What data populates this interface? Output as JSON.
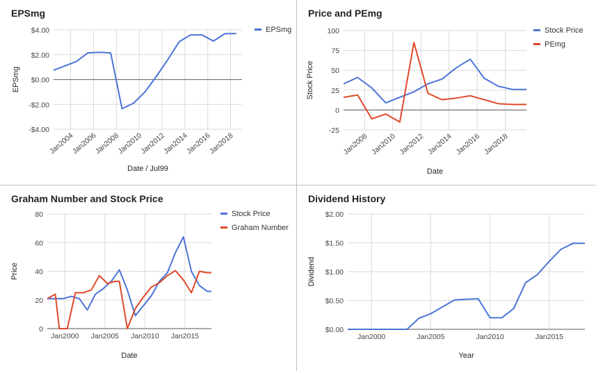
{
  "colors": {
    "blue": "#4a74d6",
    "red": "#e0482a",
    "grid": "#d9d9d9",
    "zero": "#777777"
  },
  "chart_data": [
    {
      "id": "eps",
      "type": "line",
      "title": "EPSmg",
      "xlabel": "Date / Jul99",
      "ylabel": "EPSmg",
      "ylim": [
        -4,
        4
      ],
      "yticks": [
        4,
        2,
        0,
        -2,
        -4
      ],
      "ytick_labels": [
        "$4.00",
        "$2.00",
        "$0.00",
        "-$2.00",
        "-$4.00"
      ],
      "xlim": [
        2002.5,
        2019.0
      ],
      "xticks": [
        2004,
        2006,
        2008,
        2010,
        2012,
        2014,
        2016,
        2018
      ],
      "xtick_labels": [
        "Jan2004",
        "Jan2006",
        "Jan2008",
        "Jan2010",
        "Jan2012",
        "Jan2014",
        "Jan2016",
        "Jan2018"
      ],
      "xtick_rotate": true,
      "zero_line": true,
      "legend": "right",
      "series": [
        {
          "name": "EPSmg",
          "color": "blue",
          "x": [
            2002.5,
            2003.5,
            2004.5,
            2005.5,
            2006.5,
            2007.5,
            2008.5,
            2009.5,
            2010.5,
            2011.5,
            2012.5,
            2013.5,
            2014.5,
            2015.5,
            2016.5,
            2017.5,
            2018.5
          ],
          "y": [
            0.75,
            1.1,
            1.45,
            2.15,
            2.2,
            2.15,
            -2.35,
            -1.9,
            -1.0,
            0.25,
            1.6,
            3.05,
            3.6,
            3.6,
            3.1,
            3.7,
            3.7
          ]
        }
      ]
    },
    {
      "id": "pe",
      "type": "line",
      "title": "Price and PEmg",
      "xlabel": "Date",
      "ylabel": "Stock Price",
      "ylim": [
        -25,
        100
      ],
      "yticks": [
        100,
        75,
        50,
        25,
        0,
        -25
      ],
      "ytick_labels": [
        "100",
        "75",
        "50",
        "25",
        "0",
        "-25"
      ],
      "xlim": [
        2006.5,
        2019.5
      ],
      "xticks": [
        2008,
        2010,
        2012,
        2014,
        2016,
        2018
      ],
      "xtick_labels": [
        "Jan2008",
        "Jan2010",
        "Jan2012",
        "Jan2014",
        "Jan2016",
        "Jan2018"
      ],
      "xtick_rotate": true,
      "zero_line": true,
      "legend": "right",
      "series": [
        {
          "name": "Stock Price",
          "color": "blue",
          "x": [
            2006.5,
            2007.5,
            2008.5,
            2009.5,
            2010.5,
            2011.5,
            2012.5,
            2013.5,
            2014.5,
            2015.5,
            2016.5,
            2017.5,
            2018.5,
            2019.5
          ],
          "y": [
            33,
            41,
            28,
            9,
            16,
            23,
            33,
            39,
            53,
            64,
            40,
            30,
            26,
            26
          ]
        },
        {
          "name": "PEmg",
          "color": "red",
          "x": [
            2006.5,
            2007.5,
            2008.5,
            2009.5,
            2010.5,
            2011.5,
            2012.5,
            2013.5,
            2014.5,
            2015.5,
            2016.5,
            2017.5,
            2018.5,
            2019.5
          ],
          "y": [
            16,
            19,
            -11,
            -5,
            -15,
            85,
            21,
            13,
            15,
            18,
            13,
            8,
            7,
            7
          ]
        }
      ]
    },
    {
      "id": "graham",
      "type": "line",
      "title": "Graham Number and Stock Price",
      "xlabel": "Date",
      "ylabel": "Price",
      "ylim": [
        0,
        80
      ],
      "yticks": [
        80,
        60,
        40,
        20,
        0
      ],
      "ytick_labels": [
        "80",
        "60",
        "40",
        "20",
        "0"
      ],
      "xlim": [
        1997.8,
        2018.3
      ],
      "xticks": [
        2000,
        2005,
        2010,
        2015
      ],
      "xtick_labels": [
        "Jan2000",
        "Jan2005",
        "Jan2010",
        "Jan2015"
      ],
      "xtick_rotate": false,
      "zero_line": false,
      "legend": "right",
      "series": [
        {
          "name": "Stock Price",
          "color": "blue",
          "x": [
            1997.8,
            1998.8,
            1999.8,
            2000.8,
            2001.8,
            2002.8,
            2003.8,
            2004.8,
            2005.8,
            2006.8,
            2007.8,
            2008.8,
            2009.8,
            2010.8,
            2011.8,
            2012.8,
            2013.8,
            2014.8,
            2015.8,
            2016.8,
            2017.8,
            2018.3
          ],
          "y": [
            21,
            21,
            21,
            22.5,
            21,
            13,
            24,
            28,
            33,
            41,
            27,
            9,
            16,
            23,
            33,
            39,
            53,
            64,
            40,
            30,
            26,
            26
          ]
        },
        {
          "name": "Graham Number",
          "color": "red",
          "x": [
            1997.8,
            1998.8,
            1999.3,
            2000.3,
            2001.3,
            2002.3,
            2003.3,
            2004.3,
            2005.3,
            2006.3,
            2006.8,
            2007.8,
            2008.8,
            2009.8,
            2010.8,
            2011.8,
            2012.8,
            2013.8,
            2014.8,
            2015.8,
            2016.8,
            2017.8,
            2018.3
          ],
          "y": [
            21,
            24,
            0,
            0,
            25,
            25,
            27,
            37,
            31.5,
            33,
            33,
            0,
            14,
            22,
            29,
            32,
            37,
            40.5,
            34,
            25,
            40,
            39,
            39
          ]
        }
      ]
    },
    {
      "id": "dividend",
      "type": "line",
      "title": "Dividend History",
      "xlabel": "Year",
      "ylabel": "Dividend",
      "ylim": [
        0,
        2
      ],
      "yticks": [
        2,
        1.5,
        1,
        0.5,
        0
      ],
      "ytick_labels": [
        "$2.00",
        "$1.50",
        "$1.00",
        "$0.50",
        "$0.00"
      ],
      "xlim": [
        1998.0,
        2018.0
      ],
      "xticks": [
        2000,
        2005,
        2010,
        2015
      ],
      "xtick_labels": [
        "Jan2000",
        "Jan2005",
        "Jan2010",
        "Jan2015"
      ],
      "xtick_rotate": false,
      "zero_line": false,
      "legend": "none",
      "series": [
        {
          "name": "",
          "color": "blue",
          "x": [
            1998,
            1999,
            2000,
            2001,
            2002,
            2003,
            2004,
            2005,
            2006,
            2007,
            2008,
            2009,
            2010,
            2011,
            2012,
            2013,
            2014,
            2015,
            2016,
            2017,
            2018
          ],
          "y": [
            0,
            0,
            0,
            0,
            0,
            0,
            0.19,
            0.27,
            0.39,
            0.51,
            0.52,
            0.53,
            0.2,
            0.2,
            0.36,
            0.81,
            0.95,
            1.18,
            1.39,
            1.49,
            1.49
          ]
        }
      ]
    }
  ]
}
